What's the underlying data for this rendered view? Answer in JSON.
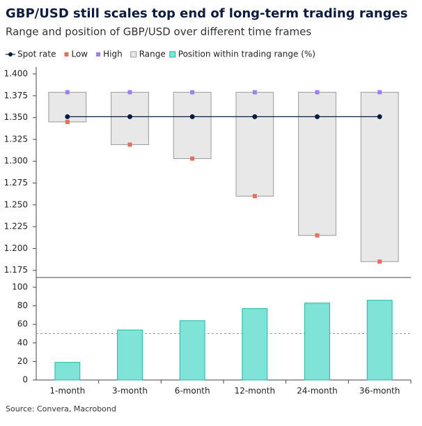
{
  "title": "GBP/USD still scales top end of long-term trading ranges",
  "subtitle": "Range and position of GBP/USD over different time frames",
  "source": "Source: Convera, Macrobond",
  "chart_data": [
    {
      "type": "range",
      "series": [
        {
          "name": "Spot rate",
          "color": "#0d1b3e",
          "values": [
            1.351,
            1.351,
            1.351,
            1.351,
            1.351,
            1.351
          ]
        },
        {
          "name": "Low",
          "color": "#e07060",
          "values": [
            1.345,
            1.319,
            1.303,
            1.26,
            1.215,
            1.185
          ]
        },
        {
          "name": "High",
          "color": "#9b80f0",
          "values": [
            1.379,
            1.379,
            1.379,
            1.379,
            1.379,
            1.379
          ]
        }
      ],
      "range": {
        "name": "Range",
        "color": "#e8e8e8"
      },
      "ylim": [
        1.17,
        1.41
      ],
      "yticks": [
        {
          "value": 1.175,
          "label": "1.175"
        },
        {
          "value": 1.2,
          "label": "1.200"
        },
        {
          "value": 1.225,
          "label": "1.225"
        },
        {
          "value": 1.25,
          "label": "1.250"
        },
        {
          "value": 1.275,
          "label": "1.275"
        },
        {
          "value": 1.3,
          "label": "1.300"
        },
        {
          "value": 1.325,
          "label": "1.325"
        },
        {
          "value": 1.35,
          "label": "1.350"
        },
        {
          "value": 1.375,
          "label": "1.375"
        },
        {
          "value": 1.4,
          "label": "1.400"
        }
      ]
    },
    {
      "type": "bar",
      "categories": [
        "1-month",
        "3-month",
        "6-month",
        "12-month",
        "24-month",
        "36-month"
      ],
      "series": [
        {
          "name": "Position within trading range (%)",
          "color": "#7fe3d8",
          "values": [
            19,
            54,
            64,
            77,
            83,
            86
          ]
        }
      ],
      "reference_line": 50,
      "ylim": [
        0,
        108
      ],
      "yticks": [
        0,
        20,
        40,
        60,
        80,
        100
      ]
    }
  ]
}
